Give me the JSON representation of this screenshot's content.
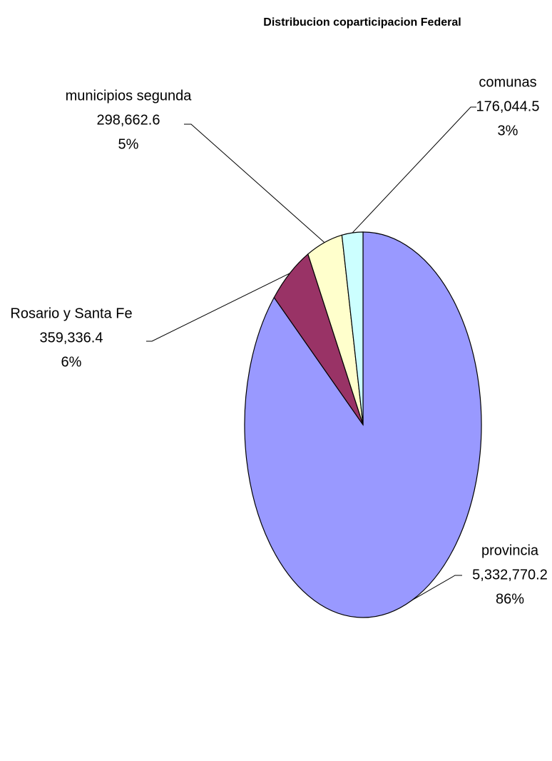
{
  "chart_data": {
    "type": "pie",
    "title": "Distribucion coparticipacion Federal",
    "categories": [
      "provincia",
      "Rosario y Santa Fe",
      "municipios segunda",
      "comunas"
    ],
    "values": [
      5332770.2,
      359336.4,
      298662.6,
      176044.5
    ],
    "value_labels": [
      "5,332,770.2",
      "359,336.4",
      "298,662.6",
      "176,044.5"
    ],
    "percents": [
      86,
      6,
      5,
      3
    ],
    "percent_labels": [
      "86%",
      "6%",
      "5%",
      "3%"
    ],
    "colors": [
      "#9999ff",
      "#993366",
      "#ffffcc",
      "#ccffff"
    ]
  }
}
